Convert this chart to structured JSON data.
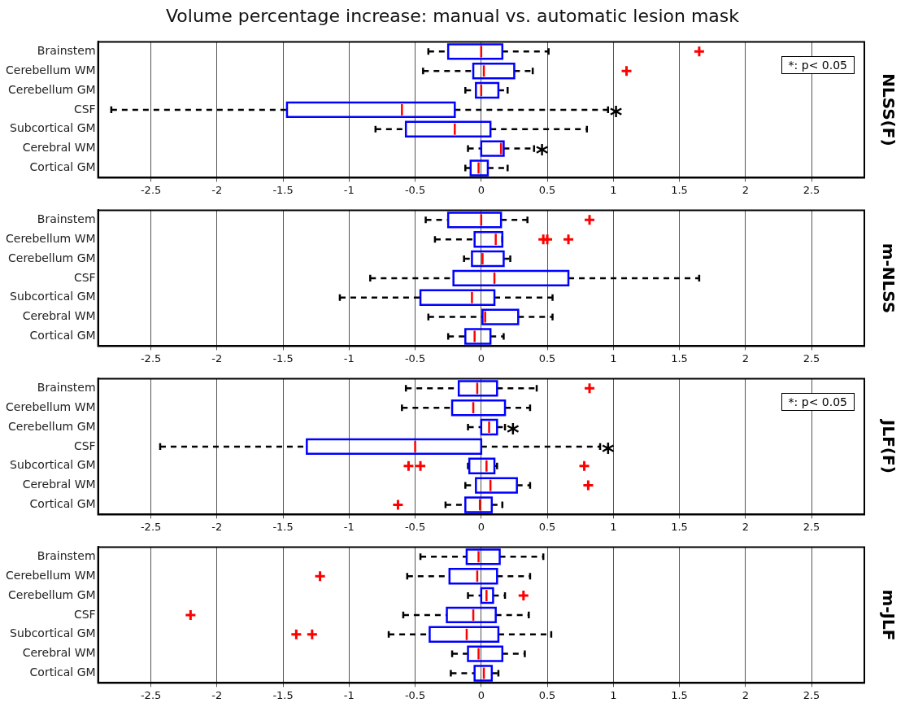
{
  "chart_data": [
    {
      "type": "box",
      "title": "Volume percentage increase: manual vs. automatic lesion mask",
      "y2label": "NLSS(F)",
      "orientation": "horizontal",
      "grid": "x",
      "xlim": [
        -2.9,
        2.9
      ],
      "xticks": [
        -2.5,
        -2,
        -1.5,
        -1,
        -0.5,
        0,
        0.5,
        1,
        1.5,
        2,
        2.5
      ],
      "categories": [
        "Brainstem",
        "Cerebellum WM",
        "Cerebellum GM",
        "CSF",
        "Subcortical GM",
        "Cerebral WM",
        "Cortical GM"
      ],
      "series": [
        {
          "color": "#0000ff",
          "boxes": [
            {
              "low": -0.4,
              "q1": -0.25,
              "median": 0.0,
              "q3": 0.16,
              "high": 0.51,
              "outliers": [
                1.65
              ]
            },
            {
              "low": -0.44,
              "q1": -0.06,
              "median": 0.02,
              "q3": 0.25,
              "high": 0.39,
              "outliers": [
                1.1
              ]
            },
            {
              "low": -0.12,
              "q1": -0.04,
              "median": 0.0,
              "q3": 0.13,
              "high": 0.2
            },
            {
              "low": -2.8,
              "q1": -1.47,
              "median": -0.6,
              "q3": -0.2,
              "high": 0.96
            },
            {
              "low": -0.8,
              "q1": -0.57,
              "median": -0.2,
              "q3": 0.07,
              "high": 0.8
            },
            {
              "low": -0.1,
              "q1": 0.0,
              "median": 0.15,
              "q3": 0.17,
              "high": 0.4
            },
            {
              "low": -0.12,
              "q1": -0.08,
              "median": -0.02,
              "q3": 0.05,
              "high": 0.2
            }
          ]
        }
      ],
      "annotations": [
        "*: p< 0.05",
        {
          "text": "*",
          "x": 0.96,
          "y": "CSF"
        },
        {
          "text": "*",
          "x": 0.4,
          "y": "Cerebral WM"
        }
      ]
    },
    {
      "type": "box",
      "y2label": "m-NLSS",
      "orientation": "horizontal",
      "grid": "x",
      "xlim": [
        -2.9,
        2.9
      ],
      "xticks": [
        -2.5,
        -2,
        -1.5,
        -1,
        -0.5,
        0,
        0.5,
        1,
        1.5,
        2,
        2.5
      ],
      "categories": [
        "Brainstem",
        "Cerebellum WM",
        "Cerebellum GM",
        "CSF",
        "Subcortical GM",
        "Cerebral WM",
        "Cortical GM"
      ],
      "series": [
        {
          "color": "#0000ff",
          "boxes": [
            {
              "low": -0.42,
              "q1": -0.25,
              "median": 0.0,
              "q3": 0.15,
              "high": 0.35,
              "outliers": [
                0.82
              ]
            },
            {
              "low": -0.35,
              "q1": -0.05,
              "median": 0.11,
              "q3": 0.16,
              "high": 0.16,
              "outliers": [
                0.47,
                0.5,
                0.66
              ]
            },
            {
              "low": -0.13,
              "q1": -0.07,
              "median": 0.01,
              "q3": 0.17,
              "high": 0.22
            },
            {
              "low": -0.84,
              "q1": -0.21,
              "median": 0.1,
              "q3": 0.66,
              "high": 1.65
            },
            {
              "low": -1.07,
              "q1": -0.46,
              "median": -0.07,
              "q3": 0.1,
              "high": 0.54
            },
            {
              "low": -0.4,
              "q1": 0.01,
              "median": 0.03,
              "q3": 0.28,
              "high": 0.54
            },
            {
              "low": -0.25,
              "q1": -0.12,
              "median": -0.05,
              "q3": 0.07,
              "high": 0.17
            }
          ]
        }
      ]
    },
    {
      "type": "box",
      "y2label": "JLF(F)",
      "orientation": "horizontal",
      "grid": "x",
      "xlim": [
        -2.9,
        2.9
      ],
      "xticks": [
        -2.5,
        -2,
        -1.5,
        -1,
        -0.5,
        0,
        0.5,
        1,
        1.5,
        2,
        2.5
      ],
      "categories": [
        "Brainstem",
        "Cerebellum WM",
        "Cerebellum GM",
        "CSF",
        "Subcortical GM",
        "Cerebral WM",
        "Cortical GM"
      ],
      "series": [
        {
          "color": "#0000ff",
          "boxes": [
            {
              "low": -0.57,
              "q1": -0.17,
              "median": -0.03,
              "q3": 0.12,
              "high": 0.42,
              "outliers": [
                0.82
              ]
            },
            {
              "low": -0.6,
              "q1": -0.22,
              "median": -0.06,
              "q3": 0.18,
              "high": 0.37
            },
            {
              "low": -0.1,
              "q1": 0.0,
              "median": 0.06,
              "q3": 0.12,
              "high": 0.18
            },
            {
              "low": -2.43,
              "q1": -1.32,
              "median": -0.5,
              "q3": 0.0,
              "high": 0.9
            },
            {
              "low": -0.1,
              "q1": -0.09,
              "median": 0.04,
              "q3": 0.1,
              "high": 0.12,
              "outliers": [
                -0.55,
                -0.46,
                0.78
              ]
            },
            {
              "low": -0.12,
              "q1": -0.04,
              "median": 0.07,
              "q3": 0.27,
              "high": 0.37,
              "outliers": [
                0.81
              ]
            },
            {
              "low": -0.27,
              "q1": -0.12,
              "median": -0.01,
              "q3": 0.08,
              "high": 0.16,
              "outliers": [
                -0.63
              ]
            }
          ]
        }
      ],
      "annotations": [
        "*: p< 0.05",
        {
          "text": "*",
          "x": 0.18,
          "y": "Cerebellum GM"
        },
        {
          "text": "*",
          "x": 0.9,
          "y": "CSF"
        }
      ]
    },
    {
      "type": "box",
      "y2label": "m-JLF",
      "orientation": "horizontal",
      "grid": "x",
      "xlim": [
        -2.9,
        2.9
      ],
      "xticks": [
        -2.5,
        -2,
        -1.5,
        -1,
        -0.5,
        0,
        0.5,
        1,
        1.5,
        2,
        2.5
      ],
      "categories": [
        "Brainstem",
        "Cerebellum WM",
        "Cerebellum GM",
        "CSF",
        "Subcortical GM",
        "Cerebral WM",
        "Cortical GM"
      ],
      "series": [
        {
          "color": "#0000ff",
          "boxes": [
            {
              "low": -0.46,
              "q1": -0.11,
              "median": -0.02,
              "q3": 0.14,
              "high": 0.47
            },
            {
              "low": -0.56,
              "q1": -0.24,
              "median": -0.03,
              "q3": 0.12,
              "high": 0.37,
              "outliers": [
                -1.22
              ]
            },
            {
              "low": -0.1,
              "q1": 0.0,
              "median": 0.04,
              "q3": 0.09,
              "high": 0.18,
              "outliers": [
                0.32
              ]
            },
            {
              "low": -0.59,
              "q1": -0.26,
              "median": -0.06,
              "q3": 0.11,
              "high": 0.36,
              "outliers": [
                -2.2
              ]
            },
            {
              "low": -0.7,
              "q1": -0.39,
              "median": -0.11,
              "q3": 0.13,
              "high": 0.53,
              "outliers": [
                -1.4,
                -1.28
              ]
            },
            {
              "low": -0.22,
              "q1": -0.1,
              "median": -0.02,
              "q3": 0.16,
              "high": 0.33
            },
            {
              "low": -0.23,
              "q1": -0.05,
              "median": 0.02,
              "q3": 0.08,
              "high": 0.13
            }
          ]
        }
      ]
    }
  ]
}
